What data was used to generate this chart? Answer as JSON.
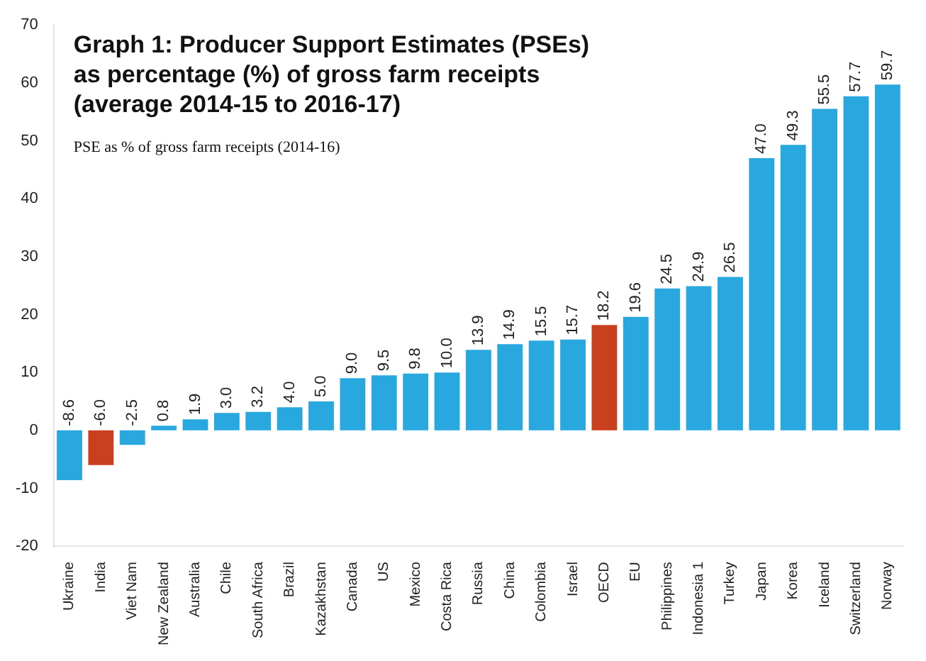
{
  "chart_data": {
    "type": "bar",
    "title": "Graph 1: Producer Support Estimates (PSEs) as percentage (%) of gross farm receipts (average 2014-15 to 2016-17)",
    "subtitle": "PSE as % of gross farm receipts (2014-16)",
    "categories": [
      "Ukraine",
      "India",
      "Viet Nam",
      "New Zealand",
      "Australia",
      "Chile",
      "South Africa",
      "Brazil",
      "Kazakhstan",
      "Canada",
      "US",
      "Mexico",
      "Costa Rica",
      "Russia",
      "China",
      "Colombia",
      "Israel",
      "OECD",
      "EU",
      "Philippines",
      "Indonesia 1",
      "Turkey",
      "Japan",
      "Korea",
      "Iceland",
      "Switzerland",
      "Norway"
    ],
    "values": [
      -8.6,
      -6.0,
      -2.5,
      0.8,
      1.9,
      3.0,
      3.2,
      4.0,
      5.0,
      9.0,
      9.5,
      9.8,
      10.0,
      13.9,
      14.9,
      15.5,
      15.7,
      18.2,
      19.6,
      24.5,
      24.9,
      26.5,
      47.0,
      49.3,
      55.5,
      57.7,
      59.7
    ],
    "colors": [
      "#29a8e0",
      "#c8401e",
      "#29a8e0",
      "#29a8e0",
      "#29a8e0",
      "#29a8e0",
      "#29a8e0",
      "#29a8e0",
      "#29a8e0",
      "#29a8e0",
      "#29a8e0",
      "#29a8e0",
      "#29a8e0",
      "#29a8e0",
      "#29a8e0",
      "#29a8e0",
      "#29a8e0",
      "#c8401e",
      "#29a8e0",
      "#29a8e0",
      "#29a8e0",
      "#29a8e0",
      "#29a8e0",
      "#29a8e0",
      "#29a8e0",
      "#29a8e0",
      "#29a8e0"
    ],
    "value_labels": [
      "-8.6",
      "-6.0",
      "-2.5",
      "0.8",
      "1.9",
      "3.0",
      "3.2",
      "4.0",
      "5.0",
      "9.0",
      "9.5",
      "9.8",
      "10.0",
      "13.9",
      "14.9",
      "15.5",
      "15.7",
      "18.2",
      "19.6",
      "24.5",
      "24.9",
      "26.5",
      "47.0",
      "49.3",
      "55.5",
      "57.7",
      "59.7"
    ],
    "ylim": [
      -20,
      70
    ],
    "yticks": [
      -20,
      -10,
      0,
      10,
      20,
      30,
      40,
      50,
      60,
      70
    ]
  }
}
